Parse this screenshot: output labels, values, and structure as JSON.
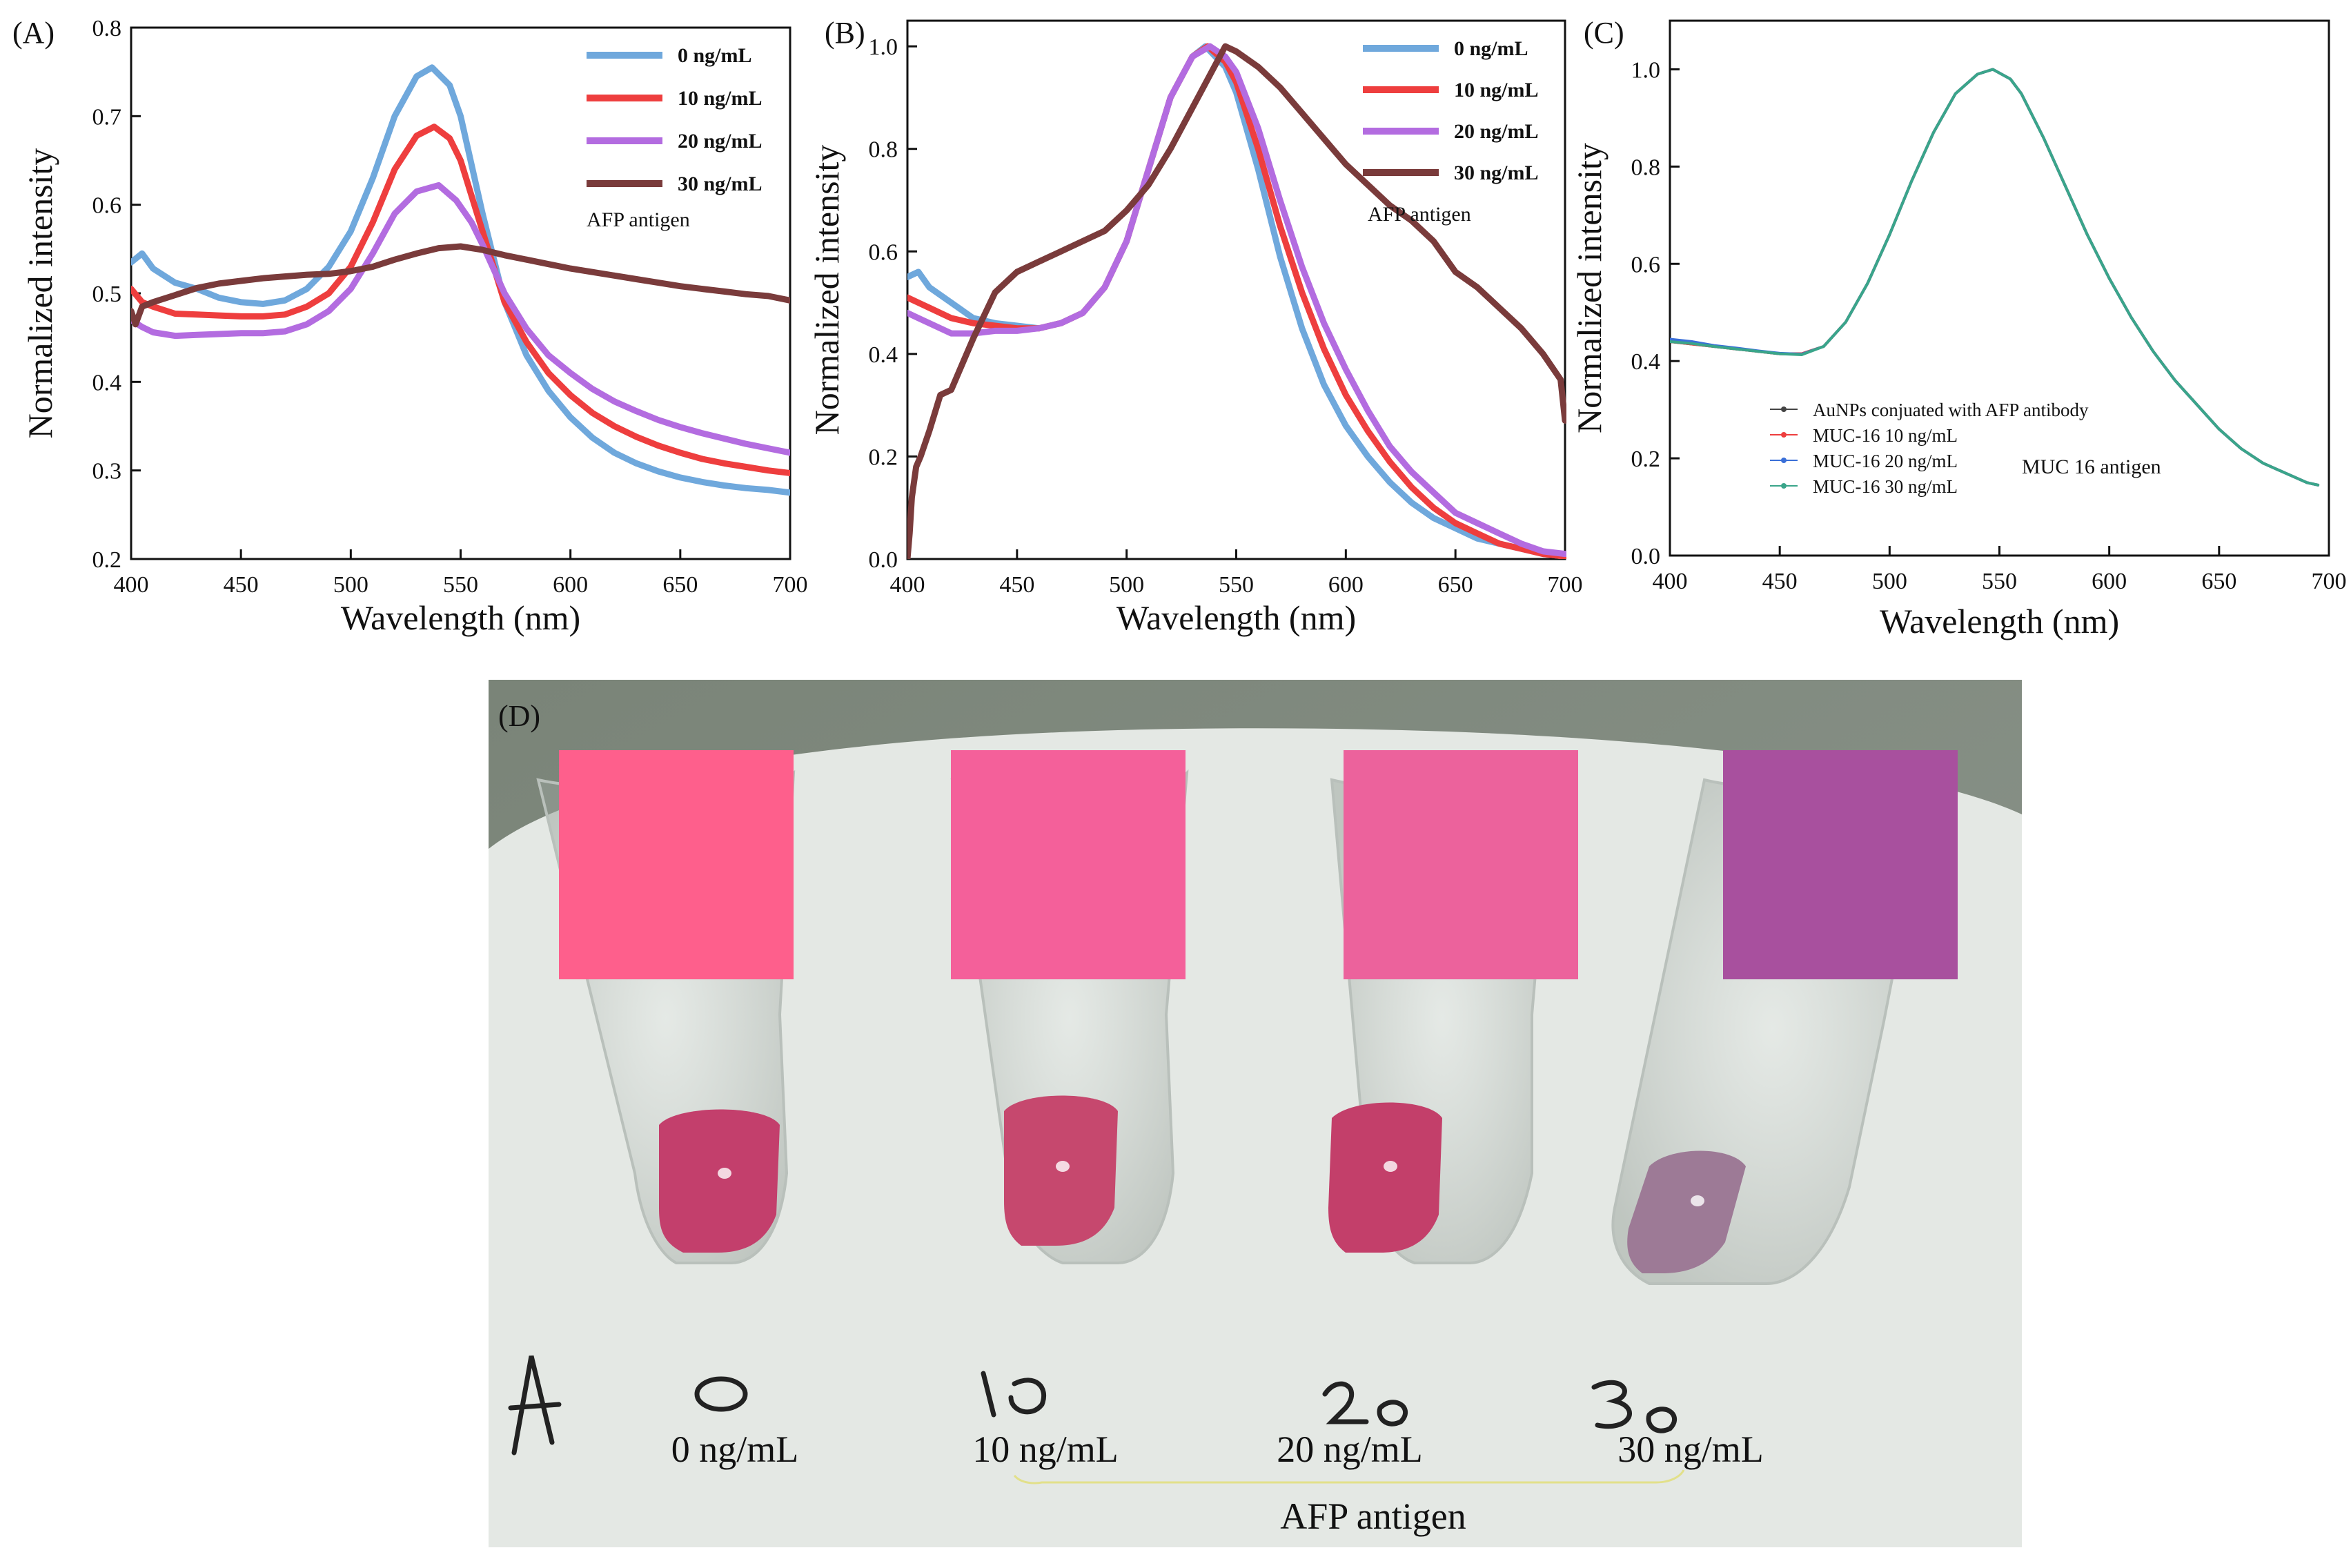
{
  "chart_data": [
    {
      "panel": "(A)",
      "type": "line",
      "xlabel": "Wavelength (nm)",
      "ylabel": "Normalized intensity",
      "xlim": [
        400,
        700
      ],
      "ylim": [
        0.2,
        0.8
      ],
      "xticks": [
        400,
        450,
        500,
        550,
        600,
        650,
        700
      ],
      "yticks": [
        0.2,
        0.3,
        0.4,
        0.5,
        0.6,
        0.7,
        0.8
      ],
      "legend_position": "top-right",
      "annotation": "AFP antigen",
      "series": [
        {
          "name": "0 ng/mL",
          "color": "#6fa8dc",
          "x": [
            400,
            405,
            410,
            420,
            430,
            440,
            450,
            460,
            470,
            480,
            490,
            500,
            510,
            520,
            530,
            537,
            545,
            550,
            560,
            570,
            580,
            590,
            600,
            610,
            620,
            630,
            640,
            650,
            660,
            670,
            680,
            690,
            700
          ],
          "y": [
            0.535,
            0.545,
            0.528,
            0.512,
            0.505,
            0.495,
            0.49,
            0.488,
            0.492,
            0.505,
            0.53,
            0.57,
            0.63,
            0.7,
            0.745,
            0.755,
            0.735,
            0.7,
            0.59,
            0.49,
            0.43,
            0.39,
            0.36,
            0.337,
            0.32,
            0.308,
            0.299,
            0.292,
            0.287,
            0.283,
            0.28,
            0.278,
            0.275
          ]
        },
        {
          "name": "10 ng/mL",
          "color": "#ee3e3e",
          "x": [
            400,
            405,
            410,
            420,
            430,
            440,
            450,
            460,
            470,
            480,
            490,
            500,
            510,
            520,
            530,
            538,
            545,
            550,
            560,
            570,
            580,
            590,
            600,
            610,
            620,
            630,
            640,
            650,
            660,
            670,
            680,
            690,
            700
          ],
          "y": [
            0.505,
            0.49,
            0.485,
            0.477,
            0.476,
            0.475,
            0.474,
            0.474,
            0.476,
            0.485,
            0.5,
            0.53,
            0.58,
            0.64,
            0.678,
            0.688,
            0.675,
            0.65,
            0.57,
            0.49,
            0.445,
            0.41,
            0.385,
            0.365,
            0.35,
            0.338,
            0.328,
            0.32,
            0.313,
            0.308,
            0.304,
            0.3,
            0.297
          ]
        },
        {
          "name": "20 ng/mL",
          "color": "#b36ce0",
          "x": [
            400,
            405,
            410,
            420,
            430,
            440,
            450,
            460,
            470,
            480,
            490,
            500,
            510,
            520,
            530,
            540,
            548,
            555,
            560,
            570,
            580,
            590,
            600,
            610,
            620,
            630,
            640,
            650,
            660,
            670,
            680,
            690,
            700
          ],
          "y": [
            0.47,
            0.462,
            0.456,
            0.452,
            0.453,
            0.454,
            0.455,
            0.455,
            0.457,
            0.465,
            0.48,
            0.505,
            0.545,
            0.59,
            0.615,
            0.622,
            0.605,
            0.58,
            0.555,
            0.5,
            0.46,
            0.43,
            0.41,
            0.392,
            0.378,
            0.367,
            0.357,
            0.349,
            0.342,
            0.336,
            0.33,
            0.325,
            0.32
          ]
        },
        {
          "name": "30 ng/mL",
          "color": "#7a3b3b",
          "x": [
            400,
            402,
            405,
            410,
            420,
            430,
            440,
            450,
            460,
            470,
            480,
            490,
            500,
            510,
            520,
            530,
            540,
            550,
            560,
            570,
            580,
            590,
            600,
            610,
            620,
            630,
            640,
            650,
            660,
            670,
            680,
            690,
            700
          ],
          "y": [
            0.48,
            0.465,
            0.485,
            0.49,
            0.498,
            0.506,
            0.511,
            0.514,
            0.517,
            0.519,
            0.521,
            0.522,
            0.525,
            0.53,
            0.538,
            0.545,
            0.551,
            0.553,
            0.549,
            0.543,
            0.538,
            0.533,
            0.528,
            0.524,
            0.52,
            0.516,
            0.512,
            0.508,
            0.505,
            0.502,
            0.499,
            0.497,
            0.492
          ]
        }
      ]
    },
    {
      "panel": "(B)",
      "type": "line",
      "xlabel": "Wavelength (nm)",
      "ylabel": "Normalized intensity",
      "xlim": [
        400,
        700
      ],
      "ylim": [
        0.0,
        1.05
      ],
      "xticks": [
        400,
        450,
        500,
        550,
        600,
        650,
        700
      ],
      "yticks": [
        0.0,
        0.2,
        0.4,
        0.6,
        0.8,
        1.0
      ],
      "ytick_labels": [
        "0.0",
        "0.2",
        "0.4",
        "0.6",
        "0.8",
        "1.0"
      ],
      "legend_position": "top-right",
      "annotation": "AFP antigen",
      "series": [
        {
          "name": "0 ng/mL",
          "color": "#6fa8dc",
          "x": [
            400,
            405,
            410,
            420,
            430,
            440,
            450,
            460,
            470,
            480,
            490,
            500,
            510,
            520,
            530,
            536,
            545,
            550,
            560,
            570,
            580,
            590,
            600,
            610,
            620,
            630,
            640,
            650,
            660,
            670,
            680,
            690,
            700
          ],
          "y": [
            0.55,
            0.56,
            0.53,
            0.5,
            0.47,
            0.46,
            0.455,
            0.45,
            0.46,
            0.48,
            0.53,
            0.62,
            0.76,
            0.9,
            0.98,
            1.0,
            0.96,
            0.91,
            0.76,
            0.59,
            0.45,
            0.34,
            0.26,
            0.2,
            0.15,
            0.11,
            0.08,
            0.06,
            0.04,
            0.03,
            0.02,
            0.01,
            0.005
          ]
        },
        {
          "name": "10 ng/mL",
          "color": "#ee3e3e",
          "x": [
            400,
            405,
            410,
            420,
            430,
            440,
            450,
            460,
            470,
            480,
            490,
            500,
            510,
            520,
            530,
            537,
            545,
            550,
            560,
            570,
            580,
            590,
            600,
            610,
            620,
            630,
            640,
            650,
            660,
            670,
            680,
            690,
            700
          ],
          "y": [
            0.51,
            0.5,
            0.49,
            0.47,
            0.46,
            0.455,
            0.45,
            0.45,
            0.46,
            0.48,
            0.53,
            0.62,
            0.76,
            0.9,
            0.98,
            1.0,
            0.97,
            0.93,
            0.8,
            0.65,
            0.52,
            0.41,
            0.32,
            0.25,
            0.19,
            0.14,
            0.1,
            0.07,
            0.05,
            0.03,
            0.02,
            0.01,
            0.005
          ]
        },
        {
          "name": "20 ng/mL",
          "color": "#b36ce0",
          "x": [
            400,
            405,
            410,
            420,
            430,
            440,
            450,
            460,
            470,
            480,
            490,
            500,
            510,
            520,
            530,
            538,
            545,
            550,
            560,
            570,
            580,
            590,
            600,
            610,
            620,
            630,
            640,
            650,
            660,
            670,
            680,
            690,
            700
          ],
          "y": [
            0.48,
            0.47,
            0.46,
            0.44,
            0.44,
            0.445,
            0.445,
            0.45,
            0.46,
            0.48,
            0.53,
            0.62,
            0.76,
            0.9,
            0.98,
            1.0,
            0.98,
            0.95,
            0.84,
            0.7,
            0.57,
            0.46,
            0.37,
            0.29,
            0.22,
            0.17,
            0.13,
            0.09,
            0.07,
            0.05,
            0.03,
            0.015,
            0.01
          ]
        },
        {
          "name": "30 ng/mL",
          "color": "#7a3b3b",
          "x": [
            400,
            401,
            402,
            404,
            406,
            410,
            415,
            420,
            425,
            430,
            440,
            450,
            460,
            470,
            480,
            490,
            500,
            510,
            520,
            530,
            540,
            545,
            550,
            560,
            570,
            580,
            590,
            600,
            610,
            620,
            630,
            640,
            650,
            660,
            670,
            680,
            690,
            698,
            700
          ],
          "y": [
            0.0,
            0.05,
            0.12,
            0.18,
            0.2,
            0.25,
            0.32,
            0.33,
            0.38,
            0.43,
            0.52,
            0.56,
            0.58,
            0.6,
            0.62,
            0.64,
            0.68,
            0.73,
            0.8,
            0.88,
            0.96,
            1.0,
            0.99,
            0.96,
            0.92,
            0.87,
            0.82,
            0.77,
            0.73,
            0.69,
            0.66,
            0.62,
            0.56,
            0.53,
            0.49,
            0.45,
            0.4,
            0.35,
            0.27
          ]
        }
      ]
    },
    {
      "panel": "(C)",
      "type": "line",
      "xlabel": "Wavelength (nm)",
      "ylabel": "Normalized intensity",
      "xlim": [
        400,
        700
      ],
      "ylim": [
        0.0,
        1.1
      ],
      "xticks": [
        400,
        450,
        500,
        550,
        600,
        650,
        700
      ],
      "yticks": [
        0.0,
        0.2,
        0.4,
        0.6,
        0.8,
        1.0
      ],
      "ytick_labels": [
        "0.0",
        "0.2",
        "0.4",
        "0.6",
        "0.8",
        "1.0"
      ],
      "legend_position": "bottom-left",
      "annotation": "MUC 16 antigen",
      "x": [
        400,
        410,
        420,
        430,
        440,
        450,
        460,
        470,
        480,
        490,
        500,
        510,
        520,
        530,
        540,
        547,
        555,
        560,
        570,
        580,
        590,
        600,
        610,
        620,
        630,
        640,
        650,
        660,
        670,
        680,
        690,
        695
      ],
      "series": [
        {
          "name": "AuNPs conjuated with AFP antibody",
          "color": "#444444",
          "y": [
            0.44,
            0.435,
            0.43,
            0.425,
            0.42,
            0.415,
            0.415,
            0.43,
            0.48,
            0.56,
            0.66,
            0.77,
            0.87,
            0.95,
            0.99,
            1.0,
            0.98,
            0.95,
            0.86,
            0.76,
            0.66,
            0.57,
            0.49,
            0.42,
            0.36,
            0.31,
            0.26,
            0.22,
            0.19,
            0.17,
            0.15,
            0.145
          ]
        },
        {
          "name": "MUC-16 10 ng/mL",
          "color": "#ee3e3e",
          "y": [
            0.44,
            0.435,
            0.43,
            0.425,
            0.42,
            0.415,
            0.415,
            0.43,
            0.48,
            0.56,
            0.66,
            0.77,
            0.87,
            0.95,
            0.99,
            1.0,
            0.98,
            0.95,
            0.86,
            0.76,
            0.66,
            0.57,
            0.49,
            0.42,
            0.36,
            0.31,
            0.26,
            0.22,
            0.19,
            0.17,
            0.15,
            0.145
          ]
        },
        {
          "name": "MUC-16 20 ng/mL",
          "color": "#3a6fd8",
          "y": [
            0.445,
            0.44,
            0.432,
            0.427,
            0.421,
            0.416,
            0.414,
            0.43,
            0.48,
            0.56,
            0.66,
            0.77,
            0.87,
            0.95,
            0.99,
            1.0,
            0.98,
            0.95,
            0.86,
            0.76,
            0.66,
            0.57,
            0.49,
            0.42,
            0.36,
            0.31,
            0.26,
            0.22,
            0.19,
            0.17,
            0.15,
            0.145
          ]
        },
        {
          "name": "MUC-16 30 ng/mL",
          "color": "#3aa58a",
          "y": [
            0.44,
            0.436,
            0.43,
            0.425,
            0.42,
            0.415,
            0.413,
            0.43,
            0.48,
            0.56,
            0.66,
            0.77,
            0.87,
            0.95,
            0.99,
            1.0,
            0.98,
            0.95,
            0.86,
            0.76,
            0.66,
            0.57,
            0.49,
            0.42,
            0.36,
            0.31,
            0.26,
            0.22,
            0.19,
            0.17,
            0.15,
            0.145
          ]
        }
      ]
    }
  ],
  "photo": {
    "panel": "(D)",
    "swatch_colors": [
      "#fe5f8c",
      "#f4609a",
      "#ec629c",
      "#a8509e"
    ],
    "labels": [
      "0 ng/mL",
      "10 ng/mL",
      "20 ng/mL",
      "30 ng/mL"
    ],
    "group_label": "AFP antigen",
    "liquid_colors": [
      "#c33f6c",
      "#c6486e",
      "#c33f6a",
      "#9d7a96"
    ],
    "handwriting": [
      "A",
      "0",
      "10",
      "20",
      "30"
    ]
  }
}
